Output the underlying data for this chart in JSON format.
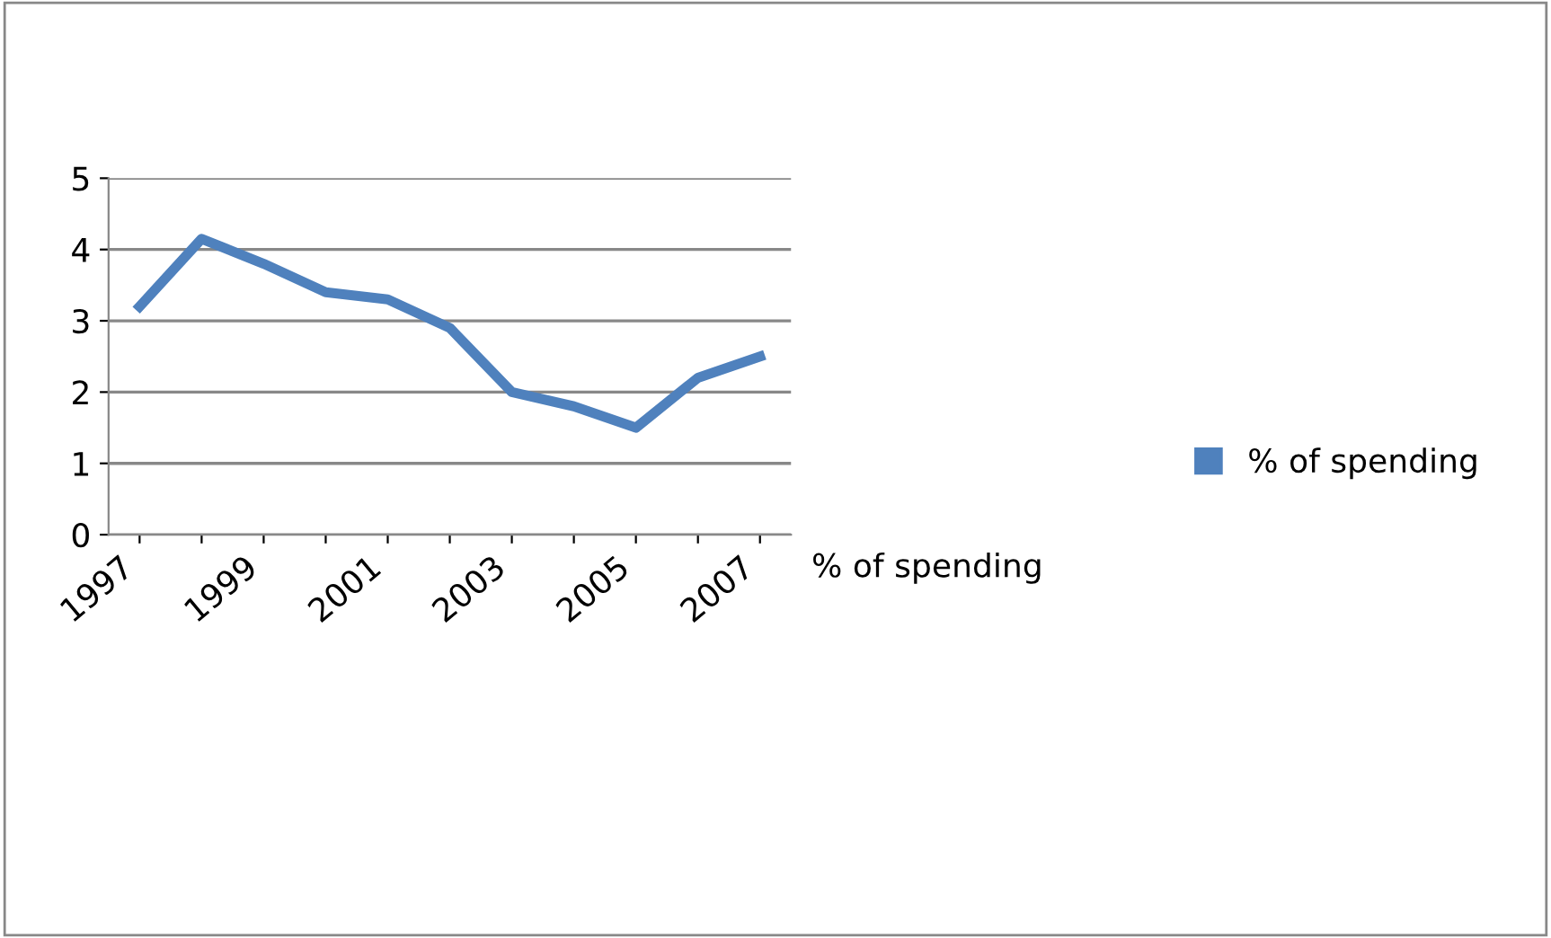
{
  "chart_data": {
    "type": "line",
    "categories": [
      "1997",
      null,
      "1999",
      null,
      "2001",
      null,
      "2003",
      null,
      "2005",
      null,
      "2007"
    ],
    "series": [
      {
        "name": "% of spending",
        "color": "#4f81bd",
        "values": [
          3.2,
          4.15,
          3.8,
          3.4,
          3.3,
          2.9,
          2.0,
          1.8,
          1.5,
          2.2,
          2.5
        ]
      }
    ],
    "xlabel": "% of spending",
    "ylim": [
      0,
      5
    ],
    "yticks": [
      0,
      1,
      2,
      3,
      4,
      5
    ],
    "grid": "y",
    "legend": "right",
    "marker": "none",
    "line_style": "solid"
  }
}
